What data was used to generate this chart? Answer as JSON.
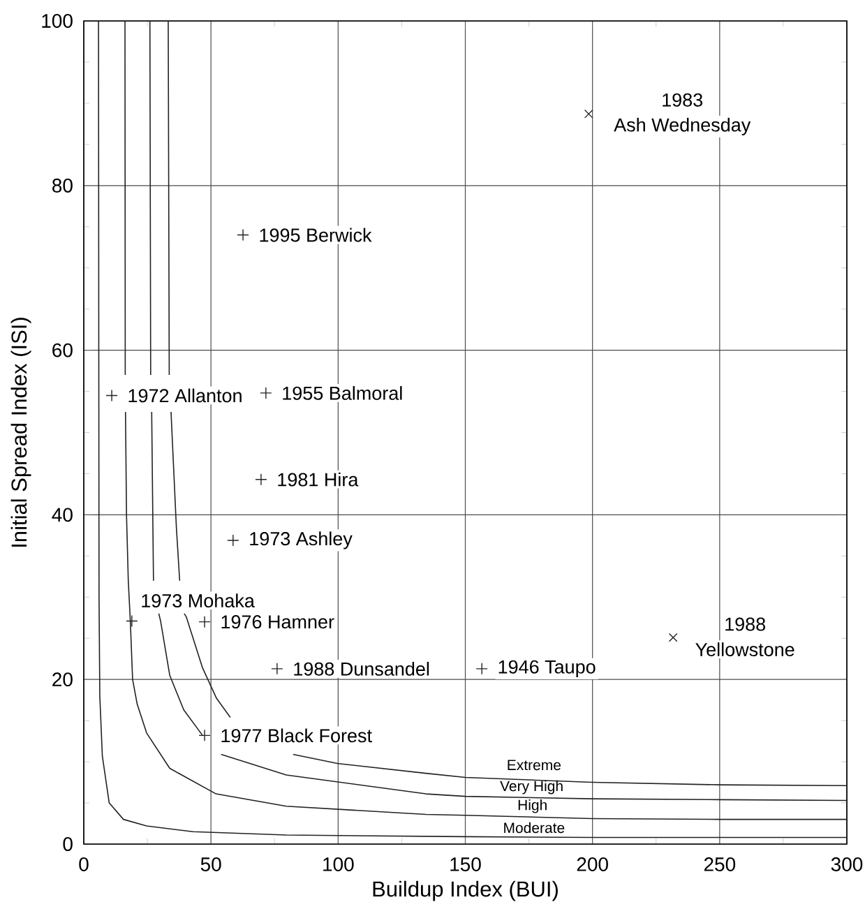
{
  "chart_data": {
    "type": "line",
    "xlabel": "Buildup Index (BUI)",
    "ylabel": "Initial Spread Index (ISI)",
    "xlim": [
      0,
      300
    ],
    "ylim": [
      0,
      100
    ],
    "xticks": [
      0,
      {
        "value": 25,
        "label": null
      },
      50,
      {
        "value": 75,
        "label": null
      },
      100,
      {
        "value": 125,
        "label": null
      },
      150,
      {
        "value": 175,
        "label": null
      },
      200,
      {
        "value": 225,
        "label": null
      },
      250,
      {
        "value": 275,
        "label": null
      },
      300
    ],
    "yticks": [
      0,
      {
        "value": 5,
        "label": null
      },
      {
        "value": 10,
        "label": null
      },
      {
        "value": 15,
        "label": null
      },
      20,
      {
        "value": 25,
        "label": null
      },
      {
        "value": 30,
        "label": null
      },
      {
        "value": 35,
        "label": null
      },
      40,
      {
        "value": 45,
        "label": null
      },
      {
        "value": 50,
        "label": null
      },
      {
        "value": 55,
        "label": null
      },
      60,
      {
        "value": 65,
        "label": null
      },
      {
        "value": 70,
        "label": null
      },
      {
        "value": 75,
        "label": null
      },
      80,
      {
        "value": 85,
        "label": null
      },
      {
        "value": 90,
        "label": null
      },
      {
        "value": 95,
        "label": null
      },
      100
    ],
    "grid": true,
    "series": [
      {
        "color": "#222222",
        "marker": "none",
        "x": [
          5.8,
          5.9,
          6.0,
          6.3,
          7.3,
          10,
          15.6,
          24.7,
          43,
          79.6,
          150,
          200,
          300
        ],
        "values": [
          100,
          60,
          30,
          18,
          10.7,
          5.0,
          3.0,
          2.2,
          1.5,
          1.1,
          0.9,
          0.8,
          0.8
        ]
      },
      {
        "color": "#222222",
        "marker": "none",
        "x": [
          16.2,
          16.3,
          16.35,
          16.4,
          16.8,
          17.5,
          18.3,
          19.2,
          21,
          24.7,
          33.8,
          52,
          79.6,
          134.5,
          150,
          200,
          250,
          300
        ],
        "values": [
          100,
          57,
          null,
          52.5,
          40,
          32,
          27.1,
          20,
          17,
          13.5,
          9.2,
          6.1,
          4.6,
          3.6,
          3.5,
          3.1,
          3.0,
          3.0
        ]
      },
      {
        "color": "#222222",
        "marker": "none",
        "x": [
          26,
          26.3,
          26.5,
          26.7,
          27.4,
          28,
          29.5,
          30.2,
          33.8,
          39.3,
          46.7,
          50,
          54,
          79.6,
          134.5,
          150,
          200,
          250,
          300
        ],
        "values": [
          100,
          57,
          null,
          52.5,
          32,
          null,
          28,
          27.1,
          20.5,
          16.3,
          13.2,
          null,
          10.9,
          8.4,
          6.1,
          5.8,
          5.5,
          5.4,
          5.3
        ]
      },
      {
        "color": "#222222",
        "marker": "none",
        "x": [
          33.2,
          33.6,
          34,
          34.3,
          36.4,
          37.7,
          38.5,
          39.5,
          40.3,
          46.7,
          52.2,
          57.6,
          70,
          82.3,
          99.7,
          134.5,
          150,
          200,
          250,
          300
        ],
        "values": [
          100,
          57,
          null,
          52.5,
          38.5,
          32,
          null,
          28,
          27.6,
          21.4,
          17.7,
          15.4,
          null,
          10.9,
          9.8,
          8.6,
          8.1,
          7.5,
          7.2,
          7.1
        ]
      },
      {
        "type": "scatter",
        "color": "#222222",
        "marker": "plus",
        "x": [
          62.6,
          11,
          71.6,
          69.7,
          58.7,
          18.9,
          47.5,
          76,
          156.5,
          47.5
        ],
        "values": [
          74.0,
          54.5,
          54.8,
          44.3,
          36.9,
          27.1,
          27.0,
          21.3,
          21.3,
          13.2
        ]
      },
      {
        "type": "scatter",
        "color": "#222222",
        "marker": "cross",
        "x": [
          198.5,
          231.7
        ],
        "values": [
          88.7,
          25.1
        ]
      }
    ],
    "annotations": [
      "1983",
      {
        "text": "Ash Wednesday",
        "x": 198.5,
        "y": 88.7
      },
      {
        "text": "1995 Berwick",
        "x": 62.6,
        "y": 74.0
      },
      {
        "text": "1972 Allanton",
        "x": 11,
        "y": 54.5
      },
      {
        "text": "1955 Balmoral",
        "x": 71.6,
        "y": 54.8
      },
      {
        "text": "1981 Hira",
        "x": 69.7,
        "y": 44.3
      },
      {
        "text": "1973 Ashley",
        "x": 58.7,
        "y": 36.9
      },
      {
        "text": "1973 Mohaka",
        "x": 18.9,
        "y": 27.1
      },
      {
        "text": "1976 Hamner",
        "x": 47.5,
        "y": 27.0
      },
      {
        "text": "1988 Dunsandel",
        "x": 76,
        "y": 21.3
      },
      {
        "text": "1946 Taupo",
        "x": 156.5,
        "y": 21.3
      },
      {
        "text": "1977 Black Forest",
        "x": 47.5,
        "y": 13.2
      },
      "1988",
      {
        "text": "Yellowstone",
        "x": 231.7,
        "y": 25.1
      },
      "Extreme",
      "Very High",
      "High",
      "Moderate"
    ]
  }
}
